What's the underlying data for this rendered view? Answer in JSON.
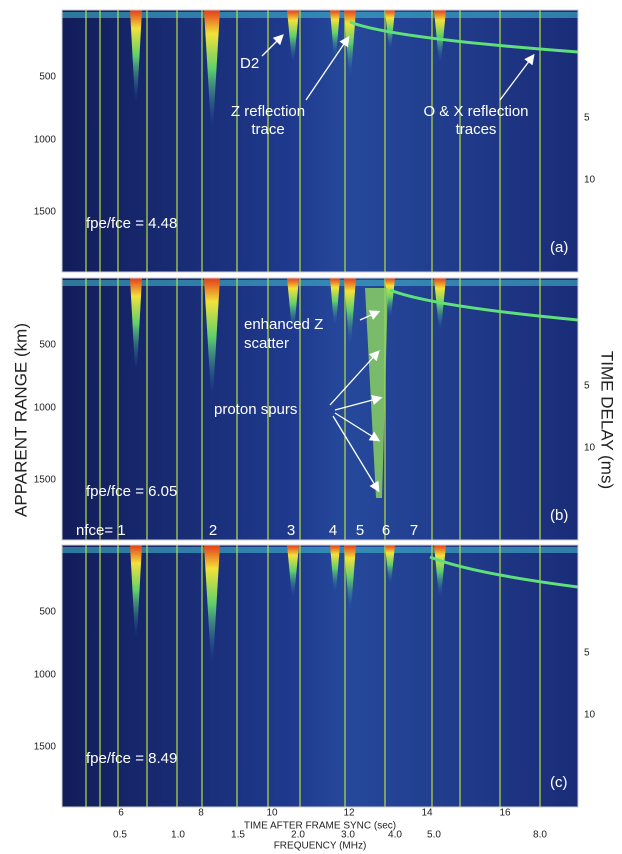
{
  "axes": {
    "left_label": "APPARENT RANGE (km)",
    "right_label": "TIME DELAY (ms)",
    "time_label": "TIME AFTER FRAME SYNC (sec)",
    "freq_label": "FREQUENCY (MHz)",
    "range_ticks": [
      "500",
      "1000",
      "1500"
    ],
    "delay_ticks": [
      "5",
      "10"
    ],
    "time_ticks": [
      "6",
      "8",
      "10",
      "12",
      "14",
      "16"
    ],
    "freq_ticks": [
      "0.5",
      "1.0",
      "1.5",
      "2.0",
      "3.0",
      "4.0",
      "5.0",
      "8.0"
    ]
  },
  "panels": [
    {
      "label": "(a)",
      "ratio": "fpe/fce = 4.48",
      "annotations": [
        "D2",
        "Z reflection",
        "trace",
        "O & X reflection",
        "traces"
      ]
    },
    {
      "label": "(b)",
      "ratio": "fpe/fce = 6.05",
      "annotations": [
        "enhanced Z",
        "scatter",
        "proton spurs"
      ]
    },
    {
      "label": "(c)",
      "ratio": "fpe/fce = 8.49",
      "annotations": []
    }
  ],
  "harmonics": [
    "nfce= 1",
    "2",
    "3",
    "4",
    "5",
    "6",
    "7"
  ]
}
